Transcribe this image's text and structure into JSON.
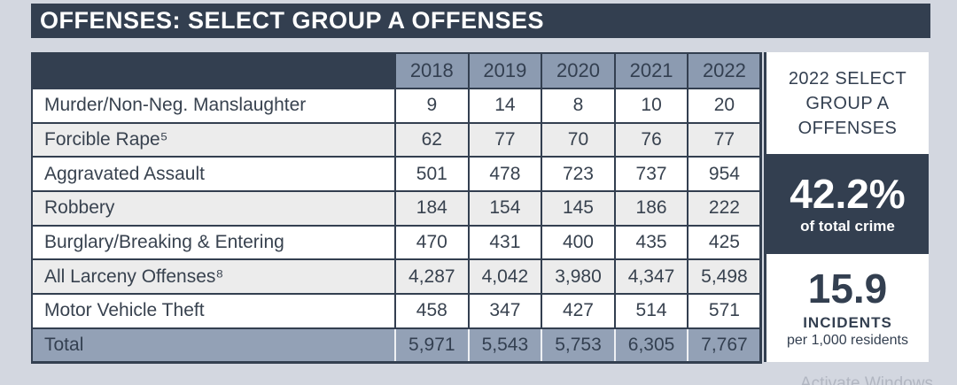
{
  "slide_title": "OFFENSES: SELECT GROUP A OFFENSES",
  "table": {
    "year_headers": [
      "2018",
      "2019",
      "2020",
      "2021",
      "2022"
    ],
    "rows": [
      {
        "label": "Murder/Non-Neg. Manslaughter",
        "values": [
          "9",
          "14",
          "8",
          "10",
          "20"
        ]
      },
      {
        "label": "Forcible Rape⁵",
        "values": [
          "62",
          "77",
          "70",
          "76",
          "77"
        ]
      },
      {
        "label": "Aggravated Assault",
        "values": [
          "501",
          "478",
          "723",
          "737",
          "954"
        ]
      },
      {
        "label": "Robbery",
        "values": [
          "184",
          "154",
          "145",
          "186",
          "222"
        ]
      },
      {
        "label": "Burglary/Breaking & Entering",
        "values": [
          "470",
          "431",
          "400",
          "435",
          "425"
        ]
      },
      {
        "label": "All Larceny Offenses⁸",
        "values": [
          "4,287",
          "4,042",
          "3,980",
          "4,347",
          "5,498"
        ]
      },
      {
        "label": "Motor Vehicle Theft",
        "values": [
          "458",
          "347",
          "427",
          "514",
          "571"
        ]
      },
      {
        "label": "Total",
        "values": [
          "5,971",
          "5,543",
          "5,753",
          "6,305",
          "7,767"
        ]
      }
    ]
  },
  "sidebar": {
    "heading": "2022 SELECT GROUP A OFFENSES",
    "percent_value": "42.2%",
    "percent_label": "of total crime",
    "rate_value": "15.9",
    "rate_label": "INCIDENTS",
    "rate_sublabel": "per 1,000 residents"
  },
  "watermark_text": "Activate Windows",
  "colors": {
    "dark_navy": "#333f50",
    "header_blue": "#8c9bb1",
    "total_row_blue": "#93a1b6",
    "alt_row_gray": "#ececec",
    "page_background": "#d3d7e0"
  },
  "chart_data": {
    "type": "table",
    "title": "OFFENSES: SELECT GROUP A OFFENSES",
    "columns": [
      "2018",
      "2019",
      "2020",
      "2021",
      "2022"
    ],
    "series": [
      {
        "name": "Murder/Non-Neg. Manslaughter",
        "values": [
          9,
          14,
          8,
          10,
          20
        ]
      },
      {
        "name": "Forcible Rape",
        "values": [
          62,
          77,
          70,
          76,
          77
        ]
      },
      {
        "name": "Aggravated Assault",
        "values": [
          501,
          478,
          723,
          737,
          954
        ]
      },
      {
        "name": "Robbery",
        "values": [
          184,
          154,
          145,
          186,
          222
        ]
      },
      {
        "name": "Burglary/Breaking & Entering",
        "values": [
          470,
          431,
          400,
          435,
          425
        ]
      },
      {
        "name": "All Larceny Offenses",
        "values": [
          4287,
          4042,
          3980,
          4347,
          5498
        ]
      },
      {
        "name": "Motor Vehicle Theft",
        "values": [
          458,
          347,
          427,
          514,
          571
        ]
      },
      {
        "name": "Total",
        "values": [
          5971,
          5543,
          5753,
          6305,
          7767
        ]
      }
    ],
    "callouts": {
      "percent_of_total_crime": "42.2%",
      "incidents_per_1000_residents": "15.9"
    }
  }
}
